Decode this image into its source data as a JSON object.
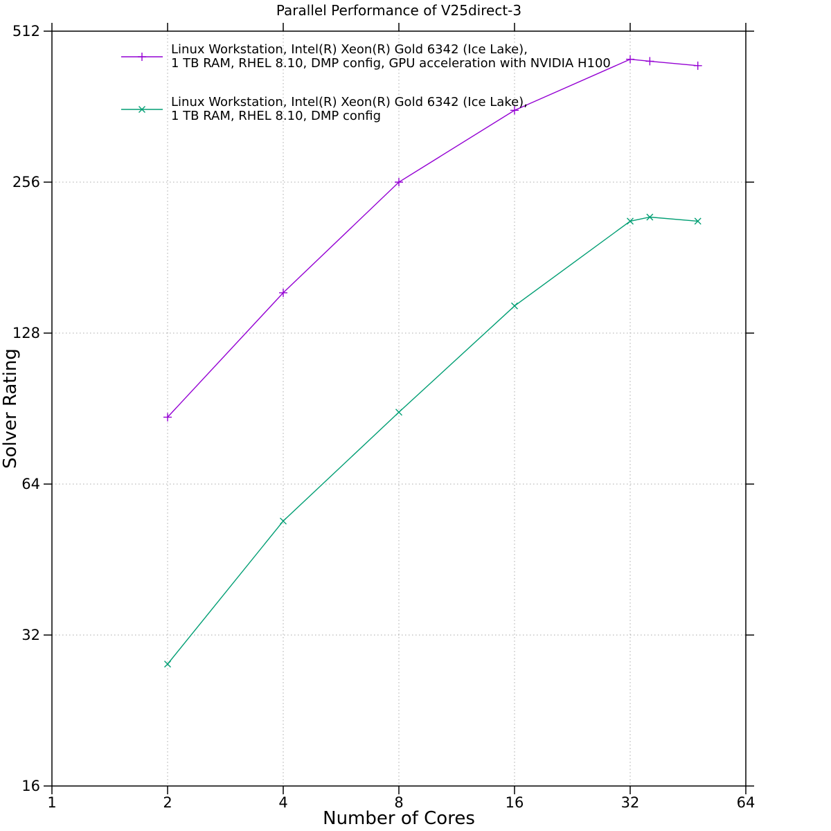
{
  "chart_data": {
    "type": "line",
    "title": "Parallel Performance of V25direct-3",
    "xlabel": "Number of Cores",
    "ylabel": "Solver Rating",
    "x_scale": "log2",
    "y_scale": "log2",
    "xlim": [
      1,
      64
    ],
    "ylim": [
      16,
      512
    ],
    "x_ticks": [
      1,
      2,
      4,
      8,
      16,
      32,
      64
    ],
    "y_ticks": [
      16,
      32,
      64,
      128,
      256,
      512
    ],
    "grid": true,
    "legend_position": "top-left-inside",
    "series": [
      {
        "name": "Linux Workstation, Intel(R) Xeon(R) Gold 6342 (Ice Lake), 1 TB RAM, RHEL 8.10, DMP config, GPU acceleration with NVIDIA H100",
        "label_lines": [
          "Linux Workstation, Intel(R) Xeon(R) Gold 6342 (Ice Lake),",
          "1 TB RAM, RHEL 8.10, DMP config, GPU acceleration with NVIDIA H100"
        ],
        "color": "#9400d3",
        "marker": "plus",
        "x": [
          2,
          4,
          8,
          16,
          32,
          36,
          48
        ],
        "y": [
          87,
          154,
          256,
          356,
          450,
          446,
          437
        ]
      },
      {
        "name": "Linux Workstation, Intel(R) Xeon(R) Gold 6342 (Ice Lake), 1 TB RAM, RHEL 8.10, DMP config",
        "label_lines": [
          "Linux Workstation, Intel(R) Xeon(R) Gold 6342 (Ice Lake),",
          "1 TB RAM, RHEL 8.10, DMP config"
        ],
        "color": "#009e73",
        "marker": "x",
        "x": [
          2,
          4,
          8,
          16,
          32,
          36,
          48
        ],
        "y": [
          28,
          54,
          89,
          145,
          214,
          218,
          214
        ]
      }
    ],
    "colors": {
      "axis": "#000000",
      "grid": "#a8a8a8",
      "text": "#000000",
      "background": "#ffffff"
    }
  }
}
